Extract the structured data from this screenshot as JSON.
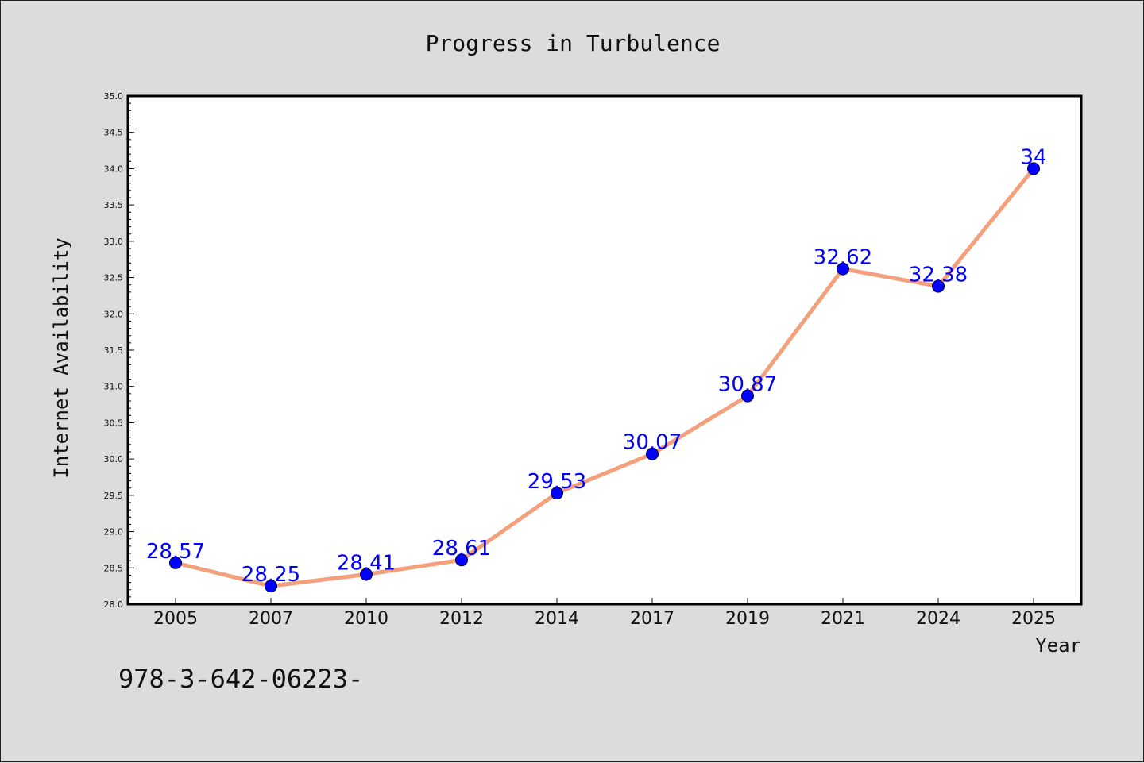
{
  "chart_data": {
    "type": "line",
    "title": "Progress in Turbulence",
    "xlabel": "Year",
    "ylabel": "Internet Availability",
    "categories": [
      "2005",
      "2007",
      "2010",
      "2012",
      "2014",
      "2017",
      "2019",
      "2021",
      "2024",
      "2025"
    ],
    "series": [
      {
        "values": [
          28.57,
          28.25,
          28.41,
          28.61,
          29.53,
          30.07,
          30.87,
          32.62,
          32.38,
          34
        ],
        "data_labels": [
          "28.57",
          "28.25",
          "28.41",
          "28.61",
          "29.53",
          "30.07",
          "30.87",
          "32.62",
          "32.38",
          "34"
        ],
        "line_color": "#f4a07c",
        "marker_color": "#0000ff"
      }
    ],
    "ylim": [
      28.0,
      35.0
    ],
    "yticks": [
      "28.0",
      "28.5",
      "29.0",
      "29.5",
      "30.0",
      "30.5",
      "31.0",
      "31.5",
      "32.0",
      "32.5",
      "33.0",
      "33.5",
      "34.0",
      "34.5",
      "35.0"
    ],
    "grid": false,
    "legend": "none",
    "annotation": "978-3-642-06223-"
  }
}
